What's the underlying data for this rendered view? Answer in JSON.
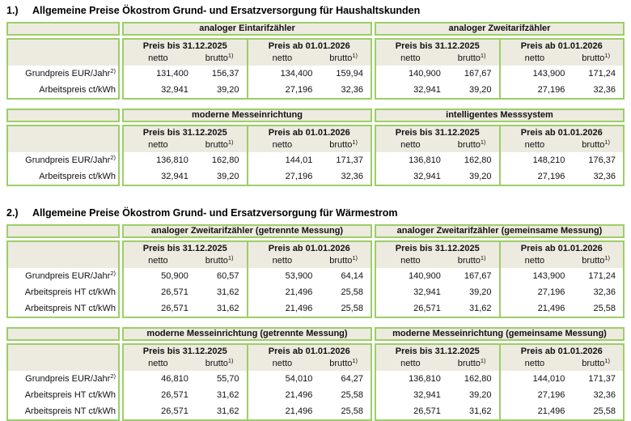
{
  "labels": {
    "netto": "netto",
    "brutto": "brutto",
    "brutto_sup": "1)"
  },
  "colors": {
    "border_green": "#9cce68",
    "header_beige": "#edeae0",
    "background": "#ffffff",
    "text": "#111111"
  },
  "page": {
    "sections": [
      {
        "number": "1.)",
        "title": "Allgemeine Preise Ökostrom Grund- und Ersatzversorgung für Haushaltskunden",
        "tables": [
          {
            "row_labels": [
              {
                "text": "Grundpreis EUR/Jahr",
                "sup": "2)"
              },
              {
                "text": "Arbeitspreis ct/kWh",
                "sup": ""
              }
            ],
            "groups": [
              {
                "title": "analoger Eintarifzähler",
                "halves": [
                  {
                    "period": "Preis bis 31.12.2025",
                    "values": [
                      [
                        "131,400",
                        "156,37"
                      ],
                      [
                        "32,941",
                        "39,20"
                      ]
                    ]
                  },
                  {
                    "period": "Preis ab 01.01.2026",
                    "values": [
                      [
                        "134,400",
                        "159,94"
                      ],
                      [
                        "27,196",
                        "32,36"
                      ]
                    ]
                  }
                ]
              },
              {
                "title": "analoger Zweitarifzähler",
                "halves": [
                  {
                    "period": "Preis bis 31.12.2025",
                    "values": [
                      [
                        "140,900",
                        "167,67"
                      ],
                      [
                        "32,941",
                        "39,20"
                      ]
                    ]
                  },
                  {
                    "period": "Preis ab 01.01.2026",
                    "values": [
                      [
                        "143,900",
                        "171,24"
                      ],
                      [
                        "27,196",
                        "32,36"
                      ]
                    ]
                  }
                ]
              }
            ]
          },
          {
            "row_labels": [
              {
                "text": "Grundpreis EUR/Jahr",
                "sup": "2)"
              },
              {
                "text": "Arbeitspreis ct/kWh",
                "sup": ""
              }
            ],
            "groups": [
              {
                "title": "moderne Messeinrichtung",
                "halves": [
                  {
                    "period": "Preis bis 31.12.2025",
                    "values": [
                      [
                        "136,810",
                        "162,80"
                      ],
                      [
                        "32,941",
                        "39,20"
                      ]
                    ]
                  },
                  {
                    "period": "Preis ab 01.01.2026",
                    "values": [
                      [
                        "144,01",
                        "171,37"
                      ],
                      [
                        "27,196",
                        "32,36"
                      ]
                    ]
                  }
                ]
              },
              {
                "title": "intelligentes Messsystem",
                "halves": [
                  {
                    "period": "Preis bis 31.12.2025",
                    "values": [
                      [
                        "136,810",
                        "162,80"
                      ],
                      [
                        "32,941",
                        "39,20"
                      ]
                    ]
                  },
                  {
                    "period": "Preis ab 01.01.2026",
                    "values": [
                      [
                        "148,210",
                        "176,37"
                      ],
                      [
                        "27,196",
                        "32,36"
                      ]
                    ]
                  }
                ]
              }
            ]
          }
        ]
      },
      {
        "number": "2.)",
        "title": "Allgemeine Preise Ökostrom Grund- und Ersatzversorgung für Wärmestrom",
        "tables": [
          {
            "row_labels": [
              {
                "text": "Grundpreis EUR/Jahr",
                "sup": "2)"
              },
              {
                "text": "Arbeitspreis HT ct/kWh",
                "sup": ""
              },
              {
                "text": "Arbeitspreis NT ct/kWh",
                "sup": ""
              }
            ],
            "groups": [
              {
                "title": "analoger Zweitarifzähler (getrennte Messung)",
                "halves": [
                  {
                    "period": "Preis bis 31.12.2025",
                    "values": [
                      [
                        "50,900",
                        "60,57"
                      ],
                      [
                        "26,571",
                        "31,62"
                      ],
                      [
                        "26,571",
                        "31,62"
                      ]
                    ]
                  },
                  {
                    "period": "Preis ab 01.01.2026",
                    "values": [
                      [
                        "53,900",
                        "64,14"
                      ],
                      [
                        "21,496",
                        "25,58"
                      ],
                      [
                        "21,496",
                        "25,58"
                      ]
                    ]
                  }
                ]
              },
              {
                "title": "analoger Zweitarifzähler (gemeinsame Messung)",
                "halves": [
                  {
                    "period": "Preis bis 31.12.2025",
                    "values": [
                      [
                        "140,900",
                        "167,67"
                      ],
                      [
                        "32,941",
                        "39,20"
                      ],
                      [
                        "26,571",
                        "31,62"
                      ]
                    ]
                  },
                  {
                    "period": "Preis ab 01.01.2026",
                    "values": [
                      [
                        "143,900",
                        "171,24"
                      ],
                      [
                        "27,196",
                        "32,36"
                      ],
                      [
                        "21,496",
                        "25,58"
                      ]
                    ]
                  }
                ]
              }
            ]
          },
          {
            "row_labels": [
              {
                "text": "Grundpreis EUR/Jahr",
                "sup": "2)"
              },
              {
                "text": "Arbeitspreis HT ct/kWh",
                "sup": ""
              },
              {
                "text": "Arbeitspreis NT ct/kWh",
                "sup": ""
              }
            ],
            "groups": [
              {
                "title": "moderne Messeinrichtung (getrennte Messung)",
                "halves": [
                  {
                    "period": "Preis bis 31.12.2025",
                    "values": [
                      [
                        "46,810",
                        "55,70"
                      ],
                      [
                        "26,571",
                        "31,62"
                      ],
                      [
                        "26,571",
                        "31,62"
                      ]
                    ]
                  },
                  {
                    "period": "Preis ab 01.01.2026",
                    "values": [
                      [
                        "54,010",
                        "64,27"
                      ],
                      [
                        "21,496",
                        "25,58"
                      ],
                      [
                        "21,496",
                        "25,58"
                      ]
                    ]
                  }
                ]
              },
              {
                "title": "moderne Messeinrichtung (gemeinsame Messung)",
                "halves": [
                  {
                    "period": "Preis bis 31.12.2025",
                    "values": [
                      [
                        "136,810",
                        "162,80"
                      ],
                      [
                        "32,941",
                        "39,20"
                      ],
                      [
                        "26,571",
                        "31,62"
                      ]
                    ]
                  },
                  {
                    "period": "Preis ab 01.01.2026",
                    "values": [
                      [
                        "144,010",
                        "171,37"
                      ],
                      [
                        "27,196",
                        "32,36"
                      ],
                      [
                        "21,496",
                        "25,58"
                      ]
                    ]
                  }
                ]
              }
            ]
          }
        ]
      }
    ]
  }
}
